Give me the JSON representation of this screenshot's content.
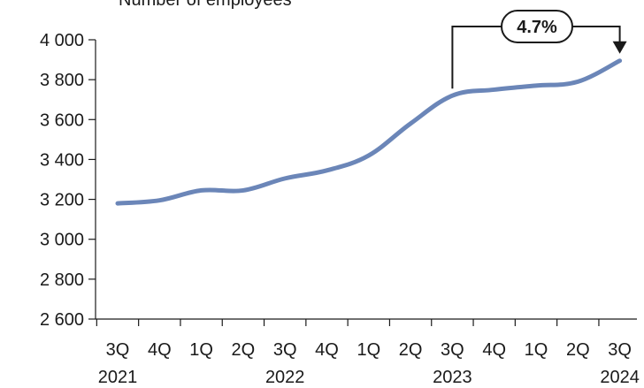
{
  "chart_data": {
    "type": "line",
    "subtitle": "Number of employees",
    "ylim": [
      2600,
      4000
    ],
    "yticks": [
      2600,
      2800,
      3000,
      3200,
      3400,
      3600,
      3800,
      4000
    ],
    "ytick_labels": [
      "2 600",
      "2 800",
      "3 000",
      "3 200",
      "3 400",
      "3 600",
      "3 800",
      "4 000"
    ],
    "categories": [
      "3Q",
      "4Q",
      "1Q",
      "2Q",
      "3Q",
      "4Q",
      "1Q",
      "2Q",
      "3Q",
      "4Q",
      "1Q",
      "2Q",
      "3Q"
    ],
    "years": [
      {
        "label": "2021",
        "at_index": 0
      },
      {
        "label": "2022",
        "at_index": 4
      },
      {
        "label": "2023",
        "at_index": 8
      },
      {
        "label": "2024",
        "at_index": 12
      }
    ],
    "series": [
      {
        "values": [
          3180,
          3195,
          3245,
          3245,
          3305,
          3345,
          3420,
          3580,
          3720,
          3750,
          3770,
          3790,
          3895
        ],
        "color": "#6b86b8"
      }
    ],
    "annotation": {
      "text": "4.7%",
      "from_index": 8,
      "to_index": 12
    },
    "grid": false,
    "legend": "none"
  }
}
